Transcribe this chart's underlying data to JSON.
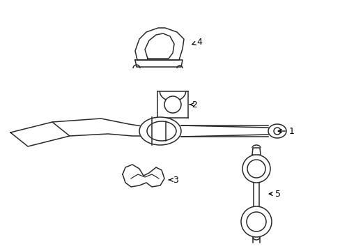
{
  "bg_color": "#ffffff",
  "line_color": "#2a2a2a",
  "text_color": "#000000",
  "fig_width": 4.89,
  "fig_height": 3.6,
  "dpi": 100,
  "lw": 1.1
}
